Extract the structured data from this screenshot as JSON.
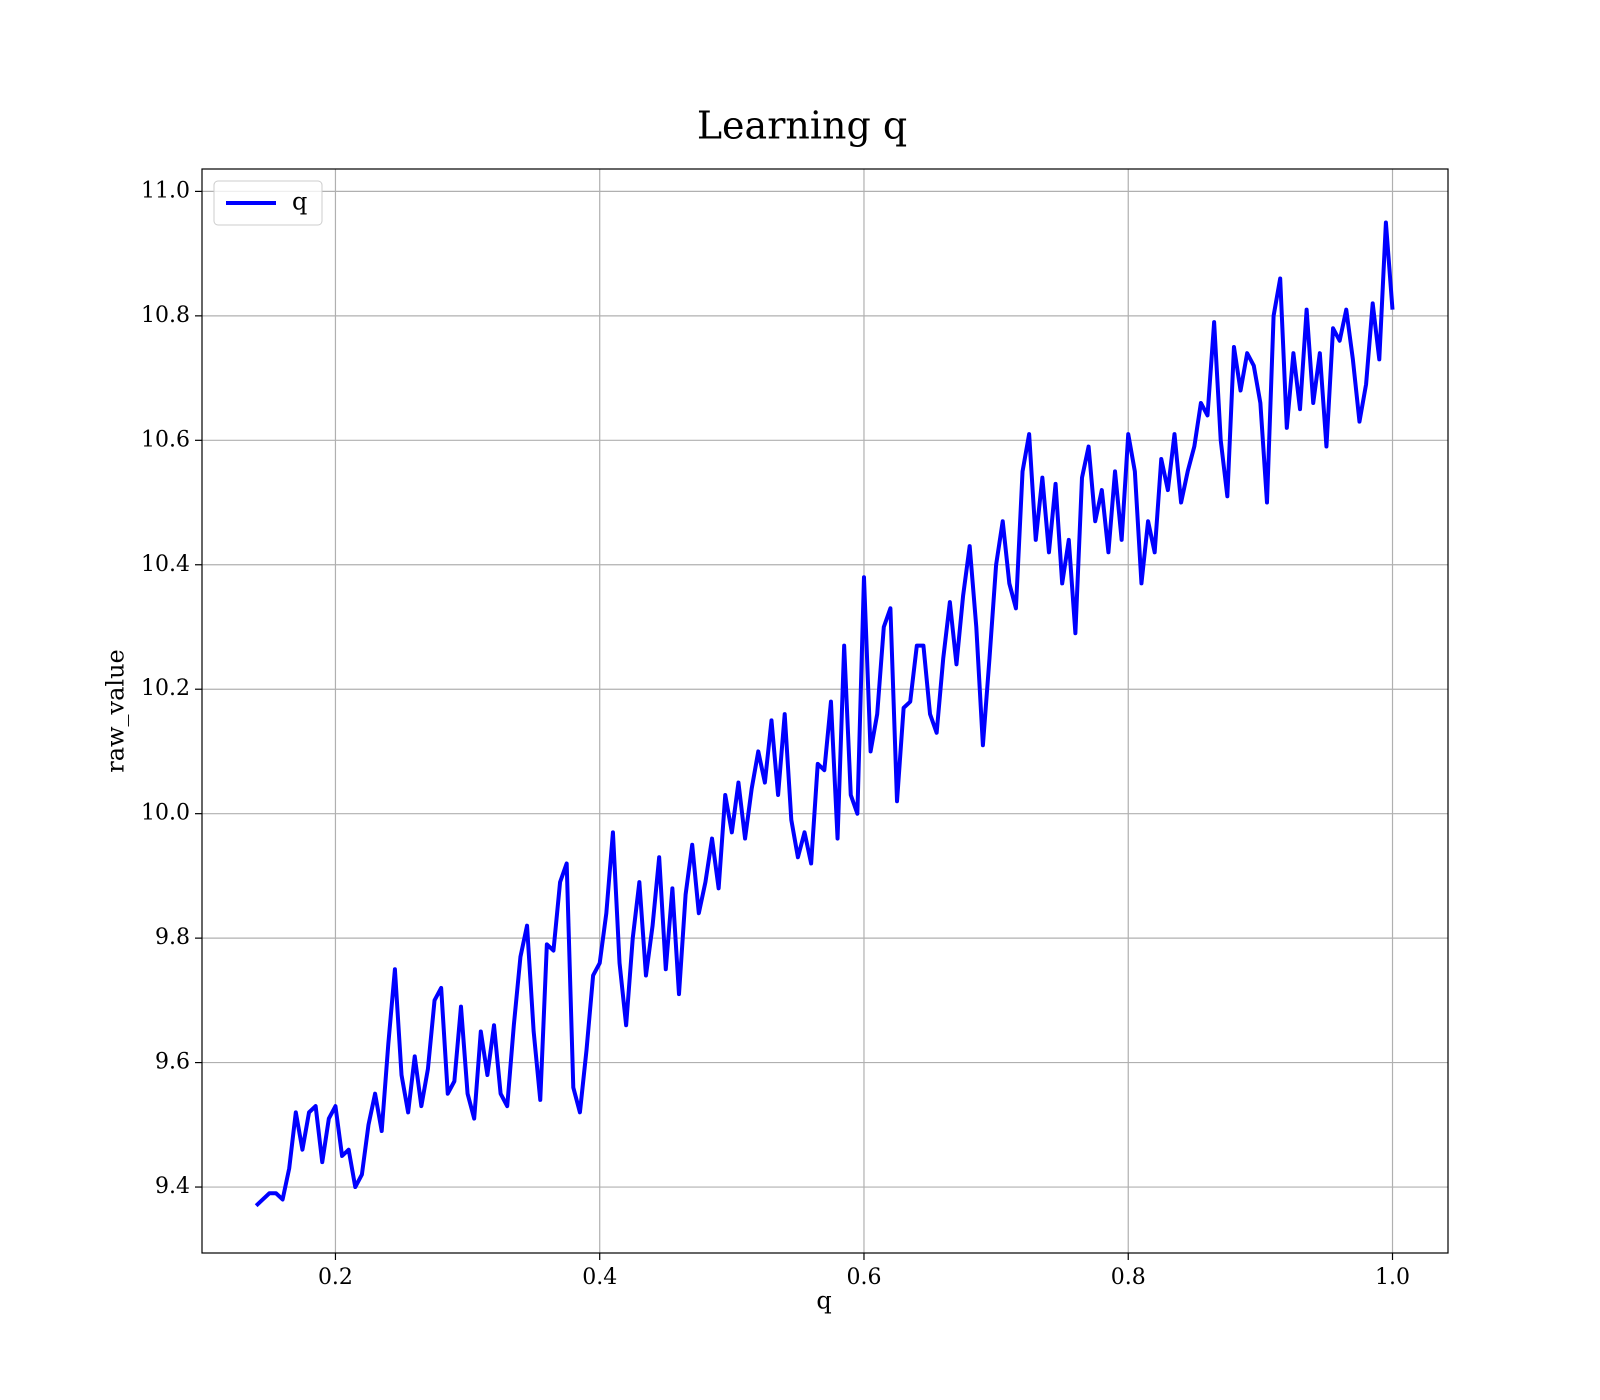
{
  "chart_data": {
    "type": "line",
    "title": "Learning q",
    "xlabel": "q",
    "ylabel": "raw_value",
    "x": [
      0.14,
      0.145,
      0.15,
      0.155,
      0.16,
      0.165,
      0.17,
      0.175,
      0.18,
      0.185,
      0.19,
      0.195,
      0.2,
      0.205,
      0.21,
      0.215,
      0.22,
      0.225,
      0.23,
      0.235,
      0.24,
      0.245,
      0.25,
      0.255,
      0.26,
      0.265,
      0.27,
      0.275,
      0.28,
      0.285,
      0.29,
      0.295,
      0.3,
      0.305,
      0.31,
      0.315,
      0.32,
      0.325,
      0.33,
      0.335,
      0.34,
      0.345,
      0.35,
      0.355,
      0.36,
      0.365,
      0.37,
      0.375,
      0.38,
      0.385,
      0.39,
      0.395,
      0.4,
      0.405,
      0.41,
      0.415,
      0.42,
      0.425,
      0.43,
      0.435,
      0.44,
      0.445,
      0.45,
      0.455,
      0.46,
      0.465,
      0.47,
      0.475,
      0.48,
      0.485,
      0.49,
      0.495,
      0.5,
      0.505,
      0.51,
      0.515,
      0.52,
      0.525,
      0.53,
      0.535,
      0.54,
      0.545,
      0.55,
      0.555,
      0.56,
      0.565,
      0.57,
      0.575,
      0.58,
      0.585,
      0.59,
      0.595,
      0.6,
      0.605,
      0.61,
      0.615,
      0.62,
      0.625,
      0.63,
      0.635,
      0.64,
      0.645,
      0.65,
      0.655,
      0.66,
      0.665,
      0.67,
      0.675,
      0.68,
      0.685,
      0.69,
      0.695,
      0.7,
      0.705,
      0.71,
      0.715,
      0.72,
      0.725,
      0.73,
      0.735,
      0.74,
      0.745,
      0.75,
      0.755,
      0.76,
      0.765,
      0.77,
      0.775,
      0.78,
      0.785,
      0.79,
      0.795,
      0.8,
      0.805,
      0.81,
      0.815,
      0.82,
      0.825,
      0.83,
      0.835,
      0.84,
      0.845,
      0.85,
      0.855,
      0.86,
      0.865,
      0.87,
      0.875,
      0.88,
      0.885,
      0.89,
      0.895,
      0.9,
      0.905,
      0.91,
      0.915,
      0.92,
      0.925,
      0.93,
      0.935,
      0.94,
      0.945,
      0.95,
      0.955,
      0.96,
      0.965,
      0.97,
      0.975,
      0.98,
      0.985,
      0.99,
      0.995,
      1.0
    ],
    "series": [
      {
        "name": "q",
        "color": "#0000ff",
        "values": [
          9.37,
          9.38,
          9.39,
          9.39,
          9.38,
          9.43,
          9.52,
          9.46,
          9.52,
          9.53,
          9.44,
          9.51,
          9.53,
          9.45,
          9.46,
          9.4,
          9.42,
          9.5,
          9.55,
          9.49,
          9.63,
          9.75,
          9.58,
          9.52,
          9.61,
          9.53,
          9.59,
          9.7,
          9.72,
          9.55,
          9.57,
          9.69,
          9.55,
          9.51,
          9.65,
          9.58,
          9.66,
          9.55,
          9.53,
          9.66,
          9.77,
          9.82,
          9.65,
          9.54,
          9.79,
          9.78,
          9.89,
          9.92,
          9.56,
          9.52,
          9.62,
          9.74,
          9.76,
          9.84,
          9.97,
          9.76,
          9.66,
          9.8,
          9.89,
          9.74,
          9.82,
          9.93,
          9.75,
          9.88,
          9.71,
          9.87,
          9.95,
          9.84,
          9.89,
          9.96,
          9.88,
          10.03,
          9.97,
          10.05,
          9.96,
          10.04,
          10.1,
          10.05,
          10.15,
          10.03,
          10.16,
          9.99,
          9.93,
          9.97,
          9.92,
          10.08,
          10.07,
          10.18,
          9.96,
          10.27,
          10.03,
          10.0,
          10.38,
          10.1,
          10.16,
          10.3,
          10.33,
          10.02,
          10.17,
          10.18,
          10.27,
          10.27,
          10.16,
          10.13,
          10.25,
          10.34,
          10.24,
          10.35,
          10.43,
          10.3,
          10.11,
          10.25,
          10.4,
          10.47,
          10.37,
          10.33,
          10.55,
          10.61,
          10.44,
          10.54,
          10.42,
          10.53,
          10.37,
          10.44,
          10.29,
          10.54,
          10.59,
          10.47,
          10.52,
          10.42,
          10.55,
          10.44,
          10.61,
          10.55,
          10.37,
          10.47,
          10.42,
          10.57,
          10.52,
          10.61,
          10.5,
          10.55,
          10.59,
          10.66,
          10.64,
          10.79,
          10.6,
          10.51,
          10.75,
          10.68,
          10.74,
          10.72,
          10.66,
          10.5,
          10.8,
          10.86,
          10.62,
          10.74,
          10.65,
          10.81,
          10.66,
          10.74,
          10.59,
          10.78,
          10.76,
          10.81,
          10.73,
          10.63,
          10.69,
          10.82,
          10.73,
          10.95,
          10.81
        ]
      }
    ],
    "xlim": [
      0.099,
      1.042
    ],
    "ylim": [
      9.294,
      11.036
    ],
    "xticks": [
      0.2,
      0.4,
      0.6,
      0.8,
      {
        "value": 1.0,
        "label": "1.0"
      }
    ],
    "yticks": [
      9.4,
      9.6,
      9.8,
      {
        "value": 10.0,
        "label": "10.0"
      },
      10.2,
      10.4,
      10.6,
      10.8,
      {
        "value": 11.0,
        "label": "11.0"
      }
    ],
    "grid": true,
    "legend": "upper left"
  }
}
